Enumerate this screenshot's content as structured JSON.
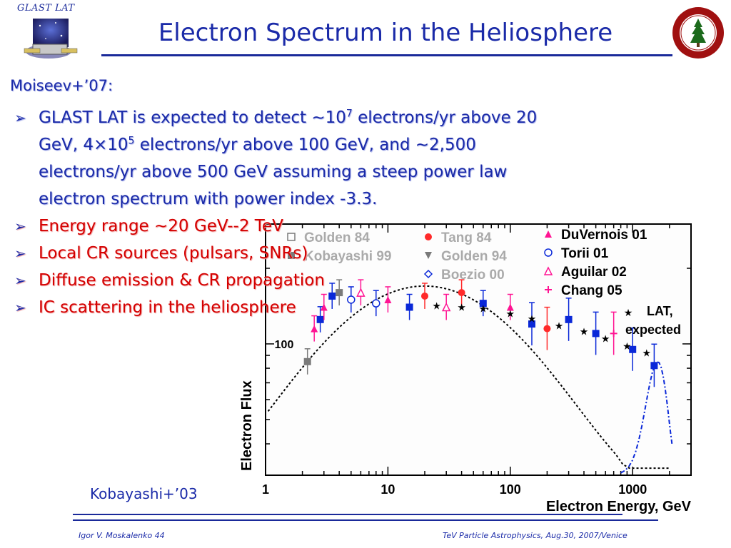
{
  "header": {
    "logo_text": "GLAST LAT",
    "title": "Electron Spectrum in the Heliosphere"
  },
  "source_label": "Moiseev+’07:",
  "bullets": {
    "b1_pre": "GLAST LAT is expected  to detect ~10",
    "b1_sup1": "7",
    "b1_mid": " electrons/yr above 20 GeV, 4×10",
    "b1_sup2": "5",
    "b1_post": " electrons/yr above 100 GeV, and ~2,500 electrons/yr above 500 GeV assuming a steep power law electron spectrum with power index -3.3.",
    "b2": "Energy range ~20 GeV--2 TeV",
    "b3": "Local CR sources (pulsars, SNRs)",
    "b4": "Diffuse emission & CR propagation",
    "b5": "IC scattering in the heliosphere"
  },
  "figure_credit": "Kobayashi+’03",
  "footer": {
    "left": "Igor V. Moskalenko  44",
    "right": "TeV Particle Astrophysics, Aug.30, 2007/Venice"
  },
  "colors": {
    "title_blue": "#1a2aa8",
    "bullet_red": "#d40000",
    "magenta": "#ff1493",
    "blue": "#0a28d8",
    "red": "#ff2a2a",
    "gray": "#7a7a7a"
  },
  "chart_data": {
    "type": "scatter",
    "xlabel": "Electron Energy, GeV",
    "ylabel": "Electron Flux",
    "x_scale": "log",
    "xlim": [
      1,
      3000
    ],
    "x_ticks": [
      "1",
      "10",
      "100",
      "1000"
    ],
    "y_ticks": [
      "100"
    ],
    "y_scale": "log",
    "legend_position": "top",
    "legend": [
      {
        "name": "Golden 84",
        "marker": "open-square",
        "color": "#7a7a7a"
      },
      {
        "name": "Tang 84",
        "marker": "filled-circle",
        "color": "#ff2a2a"
      },
      {
        "name": "DuVernois 01",
        "marker": "filled-triangle",
        "color": "#ff1493"
      },
      {
        "name": "Kobayashi 99",
        "marker": "filled-square",
        "color": "#7a7a7a"
      },
      {
        "name": "Golden 94",
        "marker": "filled-down-triangle",
        "color": "#7a7a7a"
      },
      {
        "name": "Torii 01",
        "marker": "open-circle",
        "color": "#0a28d8"
      },
      {
        "name": "Boezio 00",
        "marker": "open-diamond",
        "color": "#0a28d8"
      },
      {
        "name": "Aguilar 02",
        "marker": "open-triangle",
        "color": "#ff1493"
      },
      {
        "name": "Chang 05",
        "marker": "plus",
        "color": "#ff1493"
      },
      {
        "name": "LAT, expected",
        "marker": "star",
        "color": "#000000"
      }
    ],
    "points": [
      {
        "e": 2.2,
        "y": 85,
        "c": "#7a7a7a",
        "m": "fs"
      },
      {
        "e": 2.5,
        "y": 115,
        "c": "#ff1493",
        "m": "ft"
      },
      {
        "e": 2.8,
        "y": 125,
        "c": "#0a28d8",
        "m": "fs"
      },
      {
        "e": 3.0,
        "y": 140,
        "c": "#ff1493",
        "m": "ft"
      },
      {
        "e": 3.5,
        "y": 155,
        "c": "#0a28d8",
        "m": "fs"
      },
      {
        "e": 4.0,
        "y": 160,
        "c": "#7a7a7a",
        "m": "fs"
      },
      {
        "e": 5.0,
        "y": 150,
        "c": "#0a28d8",
        "m": "oc"
      },
      {
        "e": 6.0,
        "y": 160,
        "c": "#ff1493",
        "m": "ot"
      },
      {
        "e": 8.0,
        "y": 145,
        "c": "#0a28d8",
        "m": "oc"
      },
      {
        "e": 10,
        "y": 150,
        "c": "#ff1493",
        "m": "ft"
      },
      {
        "e": 15,
        "y": 140,
        "c": "#0a28d8",
        "m": "fs"
      },
      {
        "e": 20,
        "y": 155,
        "c": "#ff2a2a",
        "m": "fc"
      },
      {
        "e": 30,
        "y": 140,
        "c": "#ff1493",
        "m": "ot"
      },
      {
        "e": 40,
        "y": 160,
        "c": "#ff2a2a",
        "m": "fc"
      },
      {
        "e": 60,
        "y": 145,
        "c": "#0a28d8",
        "m": "fs"
      },
      {
        "e": 100,
        "y": 140,
        "c": "#ff1493",
        "m": "ft"
      },
      {
        "e": 150,
        "y": 120,
        "c": "#0a28d8",
        "m": "fs"
      },
      {
        "e": 200,
        "y": 115,
        "c": "#ff2a2a",
        "m": "fc"
      },
      {
        "e": 300,
        "y": 125,
        "c": "#0a28d8",
        "m": "fs"
      },
      {
        "e": 500,
        "y": 110,
        "c": "#0a28d8",
        "m": "fs"
      },
      {
        "e": 700,
        "y": 110,
        "c": "#ff1493",
        "m": "plus"
      },
      {
        "e": 1000,
        "y": 95,
        "c": "#0a28d8",
        "m": "fs"
      },
      {
        "e": 1500,
        "y": 82,
        "c": "#0a28d8",
        "m": "fs"
      }
    ],
    "lat_expected": [
      {
        "e": 25,
        "y": 142
      },
      {
        "e": 40,
        "y": 140
      },
      {
        "e": 60,
        "y": 138
      },
      {
        "e": 100,
        "y": 132
      },
      {
        "e": 150,
        "y": 126
      },
      {
        "e": 250,
        "y": 118
      },
      {
        "e": 400,
        "y": 112
      },
      {
        "e": 600,
        "y": 105
      },
      {
        "e": 900,
        "y": 98
      },
      {
        "e": 1300,
        "y": 92
      }
    ]
  }
}
